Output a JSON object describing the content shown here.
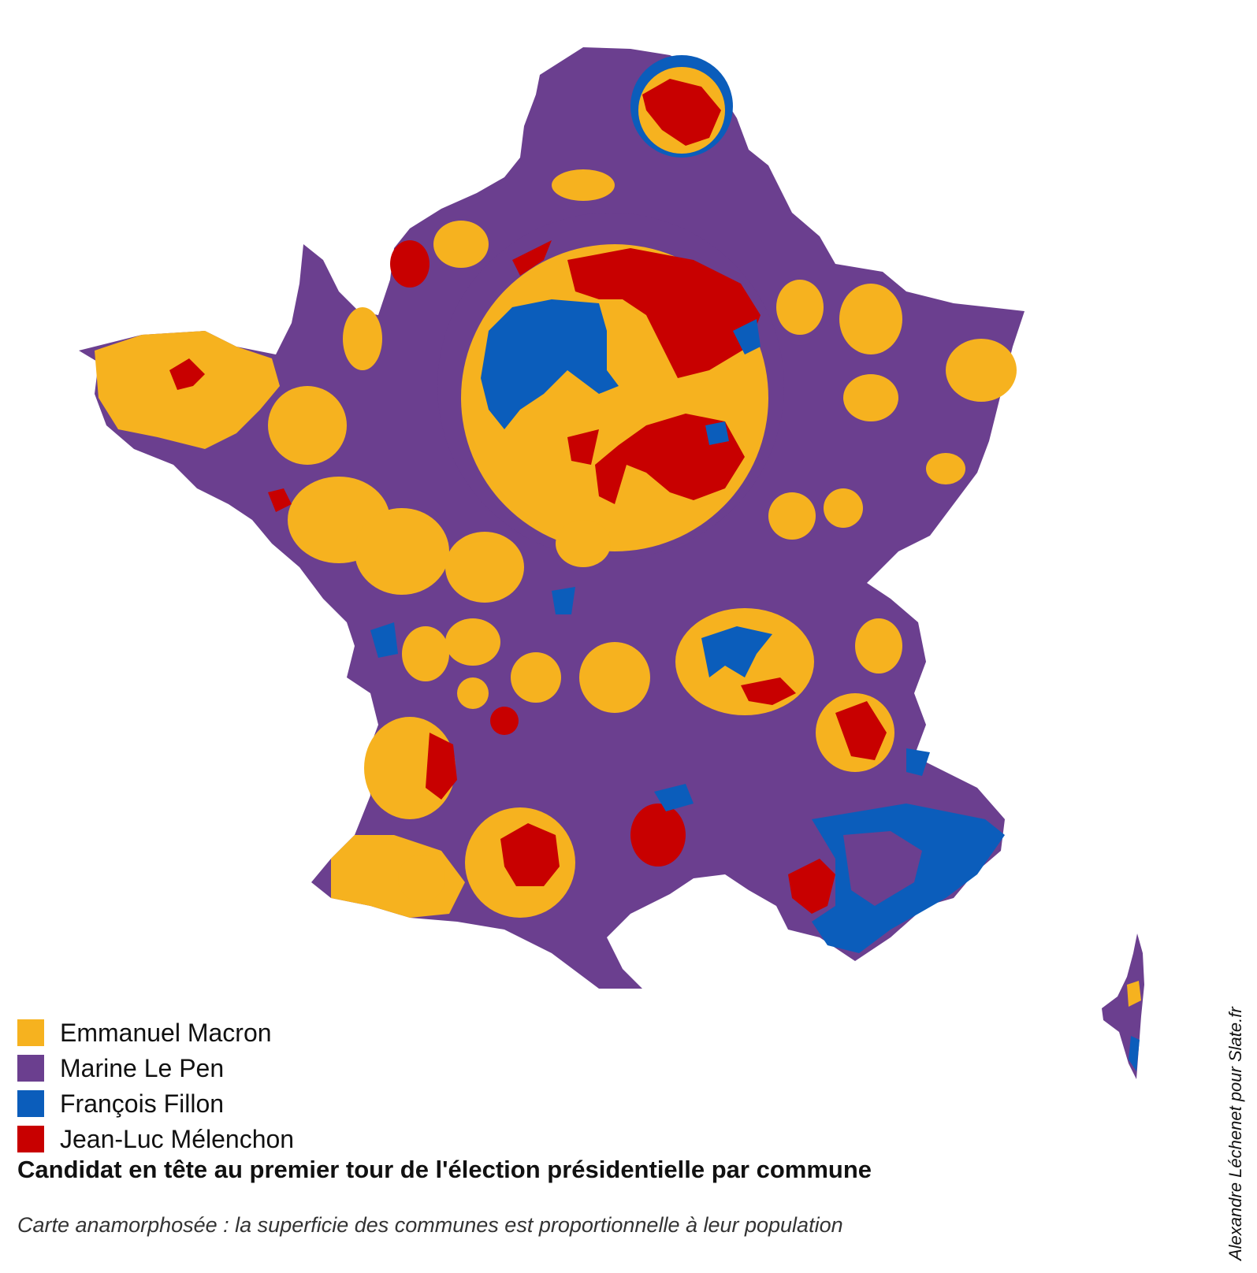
{
  "map": {
    "colors": {
      "macron": "#F6B21F",
      "lepen": "#6B3F8F",
      "fillon": "#0B5DBB",
      "melenchon": "#C80000"
    }
  },
  "legend": [
    {
      "key": "macron",
      "label": "Emmanuel Macron",
      "color": "#F6B21F"
    },
    {
      "key": "lepen",
      "label": "Marine Le Pen",
      "color": "#6B3F8F"
    },
    {
      "key": "fillon",
      "label": "François Fillon",
      "color": "#0B5DBB"
    },
    {
      "key": "melenchon",
      "label": "Jean-Luc Mélenchon",
      "color": "#C80000"
    }
  ],
  "title": "Candidat en tête au premier tour de l'élection présidentielle par commune",
  "subtitle": "Carte anamorphosée : la superficie des communes est proportionnelle à leur population",
  "credit": "Alexandre Léchenet pour Slate.fr"
}
